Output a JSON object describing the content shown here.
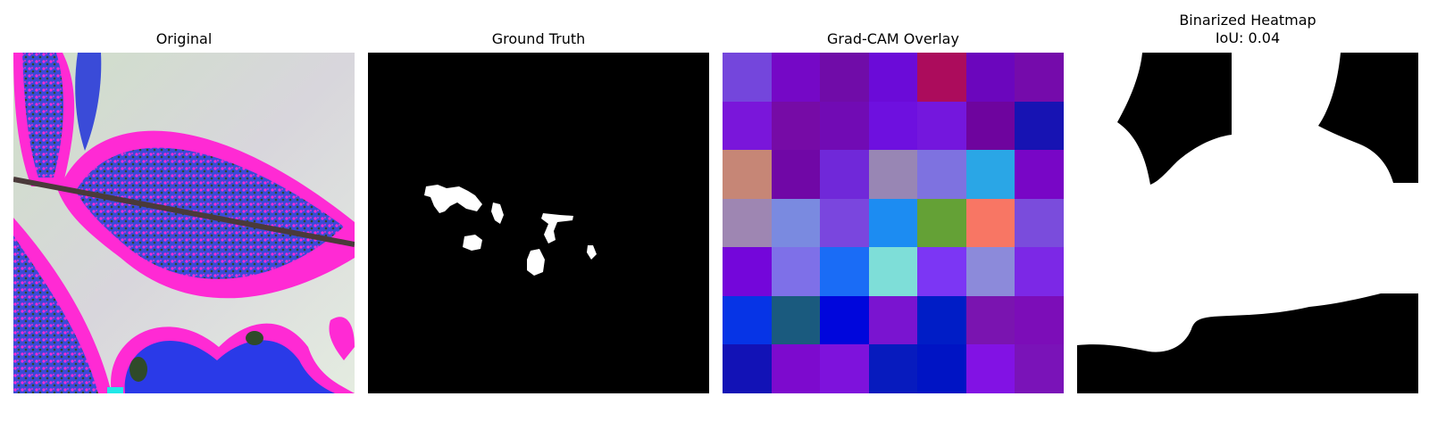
{
  "panels": {
    "original": {
      "title": "Original"
    },
    "ground_truth": {
      "title": "Ground Truth"
    },
    "gradcam": {
      "title": "Grad-CAM Overlay",
      "cells": [
        [
          "#7446DC",
          "#7508C6",
          "#700CA8",
          "#6B0BD8",
          "#AC0C5C",
          "#6B06BD",
          "#750BAB"
        ],
        [
          "#7A16DA",
          "#760BA6",
          "#710BB4",
          "#6E10DF",
          "#7417DD",
          "#6E049E",
          "#1713B3"
        ],
        [
          "#C68676",
          "#7007A6",
          "#7028D9",
          "#9886B4",
          "#7E72E0",
          "#2AA6E6",
          "#7806C6"
        ],
        [
          "#9E86B2",
          "#7A8AE0",
          "#7A46DE",
          "#1C8CF2",
          "#64A136",
          "#F87664",
          "#7A4CDC"
        ],
        [
          "#7406DA",
          "#7E70E8",
          "#1A6CF6",
          "#7EDED8",
          "#7C36F4",
          "#8C8ADA",
          "#7C28E6"
        ],
        [
          "#0634E6",
          "#1A5A7E",
          "#0006DC",
          "#7A14D0",
          "#001DC6",
          "#7A14B0",
          "#7C0DB8"
        ],
        [
          "#1212B6",
          "#7D0ACE",
          "#7E12DC",
          "#071BBE",
          "#0014C4",
          "#8212E4",
          "#7A13B8"
        ]
      ]
    },
    "binarized": {
      "title": "Binarized Heatmap\nIoU: 0.04"
    }
  }
}
